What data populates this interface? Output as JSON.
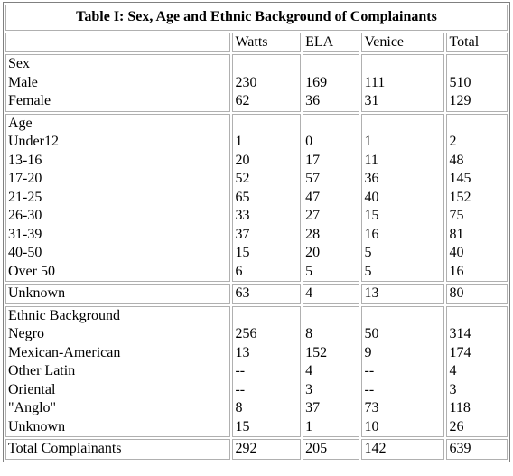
{
  "table": {
    "title": "Table I: Sex, Age and Ethnic Background of Complainants",
    "header": [
      "",
      "Watts",
      "ELA",
      "Venice",
      "Total"
    ],
    "groups": [
      {
        "heading": "Sex",
        "rows": [
          [
            "Male",
            "230",
            "169",
            "111",
            "510"
          ],
          [
            "Female",
            "62",
            "36",
            "31",
            "129"
          ]
        ]
      },
      {
        "heading": "Age",
        "rows": [
          [
            "Under12",
            "1",
            "0",
            "1",
            "2"
          ],
          [
            "13-16",
            "20",
            "17",
            "11",
            "48"
          ],
          [
            "17-20",
            "52",
            "57",
            "36",
            "145"
          ],
          [
            "21-25",
            "65",
            "47",
            "40",
            "152"
          ],
          [
            "26-30",
            "33",
            "27",
            "15",
            "75"
          ],
          [
            "31-39",
            "37",
            "28",
            "16",
            "81"
          ],
          [
            "40-50",
            "15",
            "20",
            "5",
            "40"
          ],
          [
            "Over 50",
            "6",
            "5",
            "5",
            "16"
          ]
        ]
      },
      {
        "rows": [
          [
            "Unknown",
            "63",
            "4",
            "13",
            "80"
          ]
        ]
      },
      {
        "heading": "Ethnic Background",
        "rows": [
          [
            "Negro",
            "256",
            "8",
            "50",
            "314"
          ],
          [
            "Mexican-American",
            "13",
            "152",
            "9",
            "174"
          ],
          [
            "Other Latin",
            "--",
            "4",
            "--",
            "4"
          ],
          [
            "Oriental",
            "--",
            "3",
            "--",
            "3"
          ],
          [
            "\"Anglo\"",
            "8",
            "37",
            "73",
            "118"
          ],
          [
            "Unknown",
            "15",
            "1",
            "10",
            "26"
          ]
        ]
      },
      {
        "rows": [
          [
            "Total Complainants",
            "292",
            "205",
            "142",
            "639"
          ]
        ]
      }
    ]
  }
}
